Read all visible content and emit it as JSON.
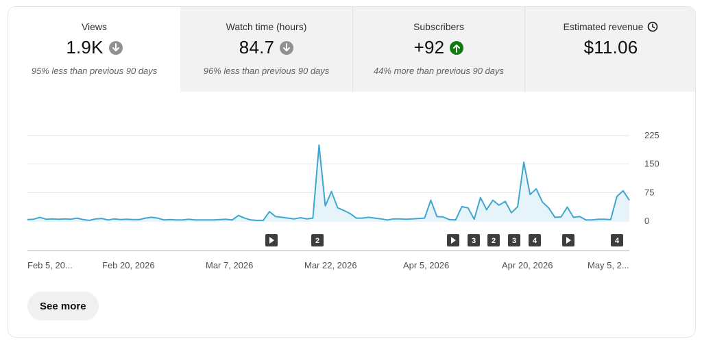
{
  "metrics": [
    {
      "label": "Views",
      "value": "1.9K",
      "trend": "down",
      "sub": "95% less than previous 90 days"
    },
    {
      "label": "Watch time (hours)",
      "value": "84.7",
      "trend": "down",
      "sub": "96% less than previous 90 days"
    },
    {
      "label": "Subscribers",
      "value": "+92",
      "trend": "up",
      "sub": "44% more than previous 90 days"
    },
    {
      "label": "Estimated revenue",
      "value": "$11.06",
      "trend": "none",
      "sub": ""
    }
  ],
  "colors": {
    "line": "#3ea6d0",
    "fill": "#e6f3f9",
    "up": "#107c10",
    "down": "#909090",
    "marker": "#3d3d3d"
  },
  "chart_data": {
    "type": "area",
    "ylim": [
      0,
      225
    ],
    "yticks": [
      0,
      75,
      150,
      225
    ],
    "xticks": [
      "Feb 5, 20...",
      "Feb 20, 2026",
      "Mar 7, 2026",
      "Mar 22, 2026",
      "Apr 5, 2026",
      "Apr 20, 2026",
      "May 5, 2..."
    ],
    "x_range": [
      "2026-02-05",
      "2026-05-06"
    ],
    "grid": true,
    "series": [
      {
        "values": [
          4,
          5,
          10,
          5,
          6,
          5,
          6,
          5,
          8,
          4,
          2,
          6,
          7,
          3,
          6,
          4,
          5,
          4,
          4,
          8,
          10,
          8,
          3,
          4,
          3,
          3,
          5,
          3,
          3,
          3,
          3,
          4,
          5,
          3,
          15,
          8,
          3,
          2,
          2,
          25,
          12,
          10,
          8,
          6,
          9,
          6,
          8,
          200,
          40,
          78,
          35,
          28,
          20,
          8,
          8,
          10,
          8,
          6,
          3,
          6,
          6,
          5,
          6,
          7,
          8,
          55,
          12,
          11,
          4,
          3,
          38,
          35,
          5,
          62,
          30,
          55,
          42,
          52,
          22,
          38,
          155,
          70,
          85,
          50,
          35,
          10,
          11,
          37,
          10,
          12,
          3,
          3,
          5,
          5,
          4,
          65,
          80,
          55
        ]
      }
    ],
    "markers": [
      "▶",
      "2",
      "▶",
      "3",
      "2",
      "3",
      "4",
      "▶",
      "4"
    ]
  },
  "see_more_label": "See more"
}
